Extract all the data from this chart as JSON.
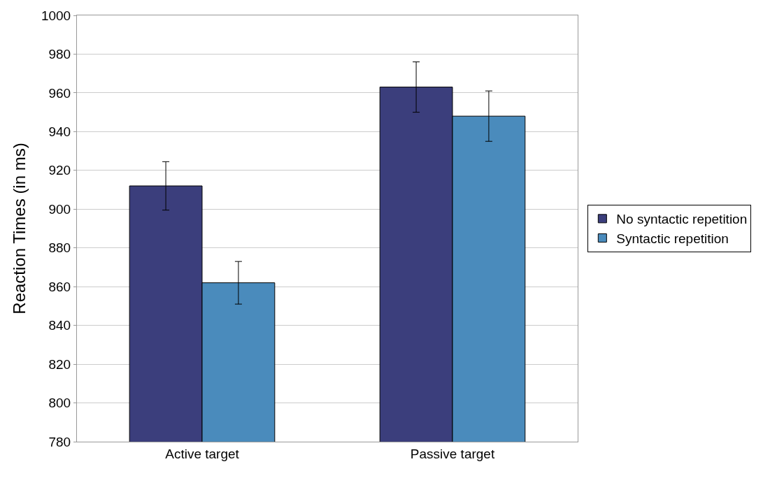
{
  "chart_data": {
    "type": "bar",
    "ylabel": "Reaction Times (in ms)",
    "categories": [
      "Active target",
      "Passive target"
    ],
    "series": [
      {
        "name": "No syntactic repetition",
        "color": "#3b3e7c",
        "values": [
          912,
          963
        ],
        "errors": [
          12.5,
          13
        ]
      },
      {
        "name": "Syntactic repetition",
        "color": "#4a8bbc",
        "values": [
          862,
          948
        ],
        "errors": [
          11,
          13
        ]
      }
    ],
    "ylim": [
      780,
      1000
    ],
    "yticks": [
      780,
      800,
      820,
      840,
      860,
      880,
      900,
      920,
      940,
      960,
      980,
      1000
    ],
    "grid": "y",
    "legend": "right"
  }
}
